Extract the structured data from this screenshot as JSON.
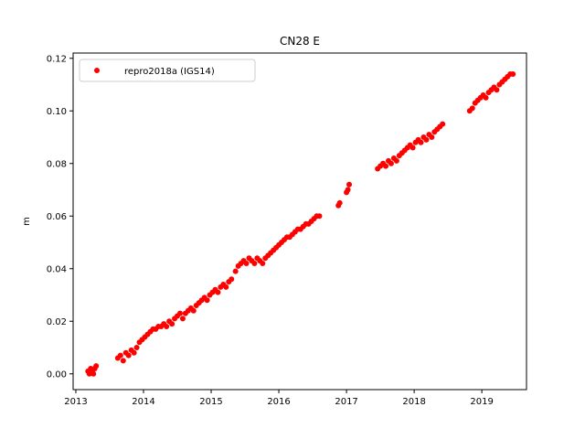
{
  "chart_data": {
    "type": "scatter",
    "title": "CN28 E",
    "xlabel": "",
    "ylabel": "m",
    "xlim": [
      2012.96,
      2019.66
    ],
    "ylim": [
      -0.006,
      0.122
    ],
    "xticks": [
      2013,
      2014,
      2015,
      2016,
      2017,
      2018,
      2019
    ],
    "yticks": [
      0.0,
      0.02,
      0.04,
      0.06,
      0.08,
      0.1,
      0.12
    ],
    "ytick_labels": [
      "0.00",
      "0.02",
      "0.04",
      "0.06",
      "0.08",
      "0.10",
      "0.12"
    ],
    "grid": false,
    "legend": {
      "position": "top-left"
    },
    "series": [
      {
        "name": "repro2018a (IGS14)",
        "color": "#ff0000",
        "marker": "circle",
        "x": [
          2013.18,
          2013.2,
          2013.22,
          2013.24,
          2013.26,
          2013.28,
          2013.3,
          2013.62,
          2013.66,
          2013.7,
          2013.74,
          2013.78,
          2013.82,
          2013.86,
          2013.9,
          2013.94,
          2013.98,
          2014.02,
          2014.06,
          2014.1,
          2014.14,
          2014.18,
          2014.22,
          2014.26,
          2014.3,
          2014.34,
          2014.38,
          2014.42,
          2014.46,
          2014.5,
          2014.54,
          2014.58,
          2014.62,
          2014.66,
          2014.7,
          2014.74,
          2014.78,
          2014.82,
          2014.86,
          2014.9,
          2014.94,
          2014.98,
          2015.02,
          2015.06,
          2015.1,
          2015.14,
          2015.18,
          2015.22,
          2015.26,
          2015.3,
          2015.36,
          2015.4,
          2015.44,
          2015.48,
          2015.52,
          2015.56,
          2015.6,
          2015.64,
          2015.68,
          2015.72,
          2015.76,
          2015.8,
          2015.84,
          2015.88,
          2015.92,
          2015.96,
          2016.0,
          2016.04,
          2016.08,
          2016.12,
          2016.16,
          2016.2,
          2016.24,
          2016.28,
          2016.32,
          2016.36,
          2016.4,
          2016.44,
          2016.48,
          2016.52,
          2016.56,
          2016.6,
          2016.88,
          2016.9,
          2017.0,
          2017.02,
          2017.04,
          2017.46,
          2017.5,
          2017.54,
          2017.58,
          2017.62,
          2017.66,
          2017.7,
          2017.74,
          2017.78,
          2017.82,
          2017.86,
          2017.9,
          2017.94,
          2017.98,
          2018.02,
          2018.06,
          2018.1,
          2018.14,
          2018.18,
          2018.22,
          2018.26,
          2018.3,
          2018.34,
          2018.38,
          2018.42,
          2018.82,
          2018.86,
          2018.9,
          2018.94,
          2018.98,
          2019.02,
          2019.06,
          2019.1,
          2019.14,
          2019.18,
          2019.22,
          2019.26,
          2019.3,
          2019.34,
          2019.38,
          2019.42,
          2019.46
        ],
        "y": [
          0.001,
          0.0,
          0.002,
          0.001,
          0.0,
          0.002,
          0.003,
          0.006,
          0.007,
          0.005,
          0.008,
          0.007,
          0.009,
          0.008,
          0.01,
          0.012,
          0.013,
          0.014,
          0.015,
          0.016,
          0.017,
          0.017,
          0.018,
          0.018,
          0.019,
          0.018,
          0.02,
          0.019,
          0.021,
          0.022,
          0.023,
          0.021,
          0.023,
          0.024,
          0.025,
          0.024,
          0.026,
          0.027,
          0.028,
          0.029,
          0.028,
          0.03,
          0.031,
          0.032,
          0.031,
          0.033,
          0.034,
          0.033,
          0.035,
          0.036,
          0.039,
          0.041,
          0.042,
          0.043,
          0.042,
          0.044,
          0.043,
          0.042,
          0.044,
          0.043,
          0.042,
          0.044,
          0.045,
          0.046,
          0.047,
          0.048,
          0.049,
          0.05,
          0.051,
          0.052,
          0.052,
          0.053,
          0.054,
          0.055,
          0.055,
          0.056,
          0.057,
          0.057,
          0.058,
          0.059,
          0.06,
          0.06,
          0.064,
          0.065,
          0.069,
          0.07,
          0.072,
          0.078,
          0.079,
          0.08,
          0.079,
          0.081,
          0.08,
          0.082,
          0.081,
          0.083,
          0.084,
          0.085,
          0.086,
          0.087,
          0.086,
          0.088,
          0.089,
          0.088,
          0.09,
          0.089,
          0.091,
          0.09,
          0.092,
          0.093,
          0.094,
          0.095,
          0.1,
          0.101,
          0.103,
          0.104,
          0.105,
          0.106,
          0.105,
          0.107,
          0.108,
          0.109,
          0.108,
          0.11,
          0.111,
          0.112,
          0.113,
          0.114,
          0.114
        ]
      }
    ]
  }
}
